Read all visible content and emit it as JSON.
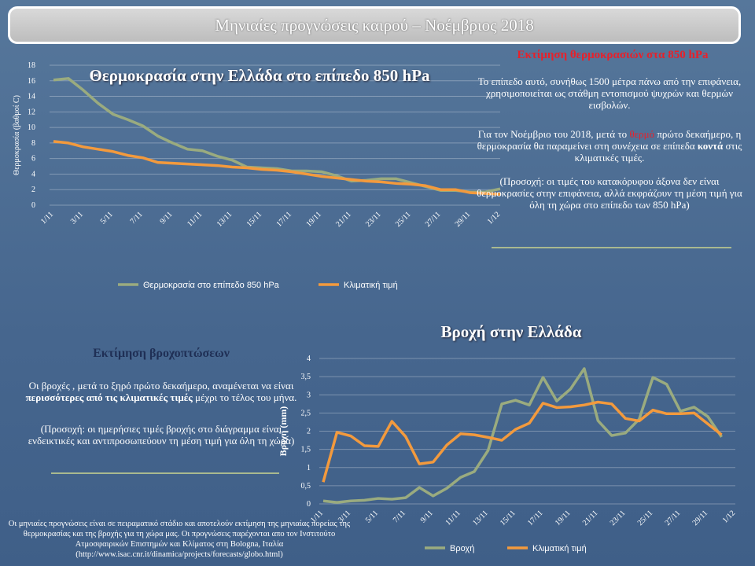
{
  "header": {
    "title": "Μηνιαίες προγνώσεις καιρού – Νοέμβριος 2018"
  },
  "temperature_text": {
    "heading": "Εκτίμηση θερμοκρασιών στα 850 hPa",
    "paragraph1": "Το επίπεδο αυτό, συνήθως 1500 μέτρα πάνω από την επιφάνεια, χρησιμοποιείται ως στάθμη εντοπισμού ψυχρών και θερμών εισβολών.",
    "paragraph2": [
      "Για τον Νοέμβριο του 2018, μετά το ",
      "θερμό",
      " πρώτο δεκαήμερο, η θερμοκρασία θα παραμείνει στη συνέχεια σε επίπεδα ",
      "κοντά",
      " στις κλιματικές τιμές."
    ],
    "paragraph3": "(Προσοχή: οι τιμές του κατακόρυφου άξονα δεν είναι θερμοκρασίες στην επιφάνεια, αλλά εκφράζουν τη μέση τιμή για όλη τη χώρα στο επίπεδο των 850 hPa)"
  },
  "rain_text": {
    "heading": "Εκτίμηση βροχοπτώσεων",
    "paragraph1": [
      "Οι βροχές , μετά το ξηρό πρώτο δεκαήμερο, αναμένεται να είναι ",
      "περισσότερες από τις κλιματικές τιμές",
      " μέχρι το τέλος του μήνα."
    ],
    "paragraph2": "(Προσοχή: οι ημερήσιες τιμές βροχής στο διάγραμμα είναι ενδεικτικές και αντιπροσωπεύουν τη μέση τιμή για όλη τη χώρα)"
  },
  "footer": {
    "text": "Οι μηνιαίες προγνώσεις είναι σε πειραματικό στάδιο και αποτελούν εκτίμηση της μηνιαίας πορείας της θερμοκρασίας και της βροχής για τη χώρα μας. Οι προγνώσεις παρέχονται απο τον Ινστιτούτο Ατμοσφαιρικών Επιστημών και Κλίματος στη Bologna, Ιταλία (http://www.isac.cnr.it/dinamica/projects/forecasts/globo.html)"
  },
  "chart_data": [
    {
      "type": "line",
      "title": "Θερμοκρασία στην Ελλάδα στο επίπεδο 850 hPa",
      "y_label": "Θερμοκρασία (βαθμοί C)",
      "categories": [
        "1/11",
        null,
        "3/11",
        null,
        "5/11",
        null,
        "7/11",
        null,
        "9/11",
        null,
        "11/11",
        null,
        "13/11",
        null,
        "15/11",
        null,
        "17/11",
        null,
        "19/11",
        null,
        "21/11",
        null,
        "23/11",
        null,
        "25/11",
        null,
        "27/11",
        null,
        "29/11",
        null,
        "1/12"
      ],
      "series": [
        {
          "name": "Θερμοκρασία στο επίπεδο 850 hPa",
          "color": "#9aab7f",
          "values": [
            16.1,
            16.3,
            14.8,
            13.1,
            11.7,
            11.0,
            10.2,
            8.9,
            8.0,
            7.2,
            7.0,
            6.3,
            5.8,
            4.9,
            4.8,
            4.7,
            4.4,
            4.4,
            4.3,
            3.8,
            3.1,
            3.2,
            3.4,
            3.4,
            2.9,
            2.4,
            1.9,
            1.9,
            1.7,
            1.7,
            2.1
          ]
        },
        {
          "name": "Κλιματική τιμή",
          "color": "#f39a3d",
          "values": [
            8.2,
            8.0,
            7.5,
            7.2,
            6.9,
            6.4,
            6.1,
            5.5,
            5.4,
            5.3,
            5.2,
            5.1,
            4.9,
            4.8,
            4.6,
            4.5,
            4.3,
            4.0,
            3.7,
            3.5,
            3.3,
            3.1,
            3.0,
            2.8,
            2.7,
            2.5,
            2.0,
            2.0,
            1.6,
            1.5,
            1.4
          ]
        }
      ],
      "ylim": [
        0,
        18
      ],
      "yticks": [
        0,
        2,
        4,
        6,
        8,
        10,
        12,
        14,
        16,
        18
      ],
      "grid": true,
      "legend": "bottom"
    },
    {
      "type": "line",
      "title": "Βροχή στην Ελλάδα",
      "y_label": "Βροχή (mm)",
      "categories": [
        "1/11",
        null,
        "3/11",
        null,
        "5/11",
        null,
        "7/11",
        null,
        "9/11",
        null,
        "11/11",
        null,
        "13/11",
        null,
        "15/11",
        null,
        "17/11",
        null,
        "19/11",
        null,
        "21/11",
        null,
        "23/11",
        null,
        "25/11",
        null,
        "27/11",
        null,
        "29/11",
        null,
        "1/12"
      ],
      "series": [
        {
          "name": "Βροχή",
          "color": "#9aab7f",
          "values": [
            0.08,
            0.04,
            0.08,
            0.1,
            0.15,
            0.13,
            0.17,
            0.45,
            0.22,
            0.43,
            0.73,
            0.89,
            1.47,
            2.75,
            2.85,
            2.72,
            3.48,
            2.83,
            3.16,
            3.72,
            2.29,
            1.88,
            1.95,
            2.33,
            3.48,
            3.29,
            2.55,
            2.66,
            2.4,
            1.84,
            null
          ]
        },
        {
          "name": "Κλιματική τιμή",
          "color": "#f39a3d",
          "values": [
            0.6,
            1.97,
            1.87,
            1.6,
            1.58,
            2.27,
            1.85,
            1.1,
            1.15,
            1.62,
            1.93,
            1.9,
            1.83,
            1.75,
            2.05,
            2.22,
            2.77,
            2.65,
            2.67,
            2.72,
            2.8,
            2.75,
            2.35,
            2.28,
            2.58,
            2.48,
            2.48,
            2.5,
            2.2,
            1.9,
            null
          ]
        }
      ],
      "ylim": [
        0,
        4
      ],
      "yticks": [
        0,
        {
          "value": 0.5,
          "label": "0,5"
        },
        1,
        {
          "value": 1.5,
          "label": "1,5"
        },
        2,
        {
          "value": 2.5,
          "label": "2,5"
        },
        3,
        {
          "value": 3.5,
          "label": "3,5"
        },
        4
      ],
      "grid": true,
      "legend": "bottom"
    }
  ]
}
